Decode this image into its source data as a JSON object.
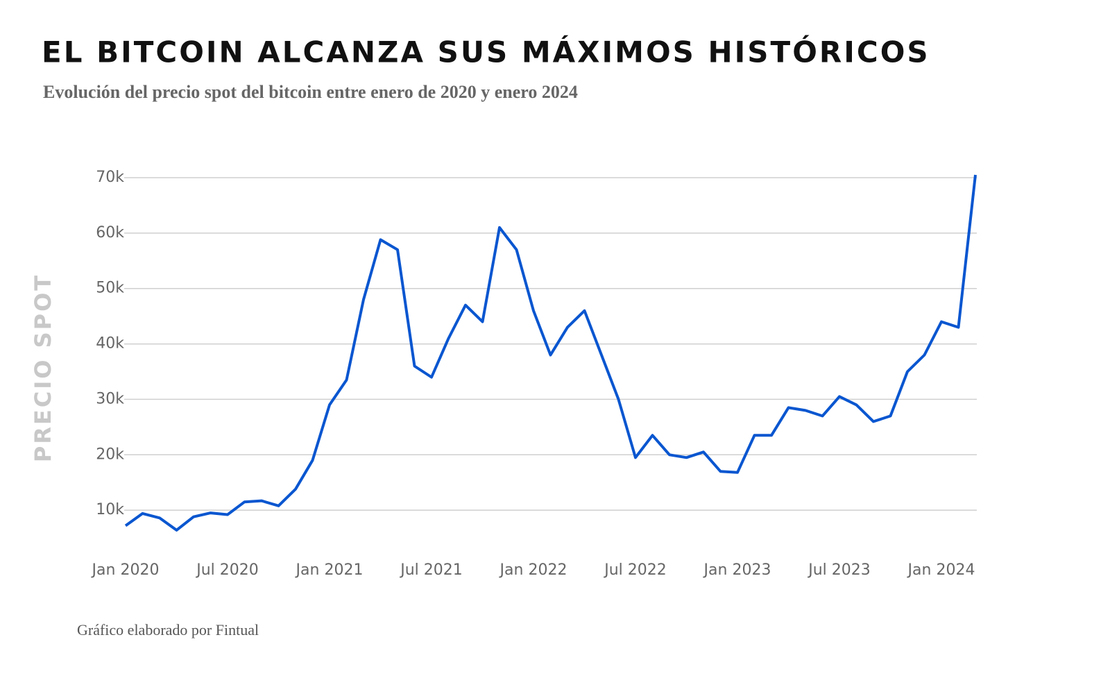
{
  "chart_data": {
    "type": "line",
    "title": "EL BITCOIN ALCANZA SUS MÁXIMOS HISTÓRICOS",
    "subtitle": "Evolución del precio spot del bitcoin entre enero de 2020 y enero 2024",
    "y_label": "PRECIO SPOT",
    "note": "Gráfico elaborado por Fintual",
    "color": "#0a56d0",
    "grid": true,
    "x": [
      "2020-01",
      "2020-02",
      "2020-03",
      "2020-04",
      "2020-05",
      "2020-06",
      "2020-07",
      "2020-08",
      "2020-09",
      "2020-10",
      "2020-11",
      "2020-12",
      "2021-01",
      "2021-02",
      "2021-03",
      "2021-04",
      "2021-05",
      "2021-06",
      "2021-07",
      "2021-08",
      "2021-09",
      "2021-10",
      "2021-11",
      "2021-12",
      "2022-01",
      "2022-02",
      "2022-03",
      "2022-04",
      "2022-05",
      "2022-06",
      "2022-07",
      "2022-08",
      "2022-09",
      "2022-10",
      "2022-11",
      "2022-12",
      "2023-01",
      "2023-02",
      "2023-03",
      "2023-04",
      "2023-05",
      "2023-06",
      "2023-07",
      "2023-08",
      "2023-09",
      "2023-10",
      "2023-11",
      "2023-12",
      "2024-01",
      "2024-02",
      "2024-03"
    ],
    "values": [
      7200,
      9400,
      8600,
      6400,
      8800,
      9500,
      9200,
      11500,
      11700,
      10800,
      13800,
      19000,
      29000,
      33500,
      48000,
      58800,
      57000,
      36000,
      34000,
      41000,
      47000,
      44000,
      61000,
      57000,
      46000,
      38000,
      43000,
      46000,
      38000,
      30000,
      19500,
      23500,
      20000,
      19500,
      20500,
      17000,
      16800,
      23500,
      23500,
      28500,
      28000,
      27000,
      30500,
      29000,
      26000,
      27000,
      35000,
      38000,
      44000,
      43000,
      70500
    ],
    "xlim": [
      "2020-01",
      "2024-03"
    ],
    "xticks": [
      {
        "value": "2020-01",
        "label": "Jan 2020"
      },
      {
        "value": "2020-07",
        "label": "Jul 2020"
      },
      {
        "value": "2021-01",
        "label": "Jan 2021"
      },
      {
        "value": "2021-07",
        "label": "Jul 2021"
      },
      {
        "value": "2022-01",
        "label": "Jan 2022"
      },
      {
        "value": "2022-07",
        "label": "Jul 2022"
      },
      {
        "value": "2023-01",
        "label": "Jan 2023"
      },
      {
        "value": "2023-07",
        "label": "Jul 2023"
      },
      {
        "value": "2024-01",
        "label": "Jan 2024"
      }
    ],
    "ylim": [
      0,
      70000
    ],
    "yticks": [
      {
        "value": 10000,
        "label": "10k"
      },
      {
        "value": 20000,
        "label": "20k"
      },
      {
        "value": 30000,
        "label": "30k"
      },
      {
        "value": 40000,
        "label": "40k"
      },
      {
        "value": 50000,
        "label": "50k"
      },
      {
        "value": 60000,
        "label": "60k"
      },
      {
        "value": 70000,
        "label": "70k"
      }
    ]
  }
}
